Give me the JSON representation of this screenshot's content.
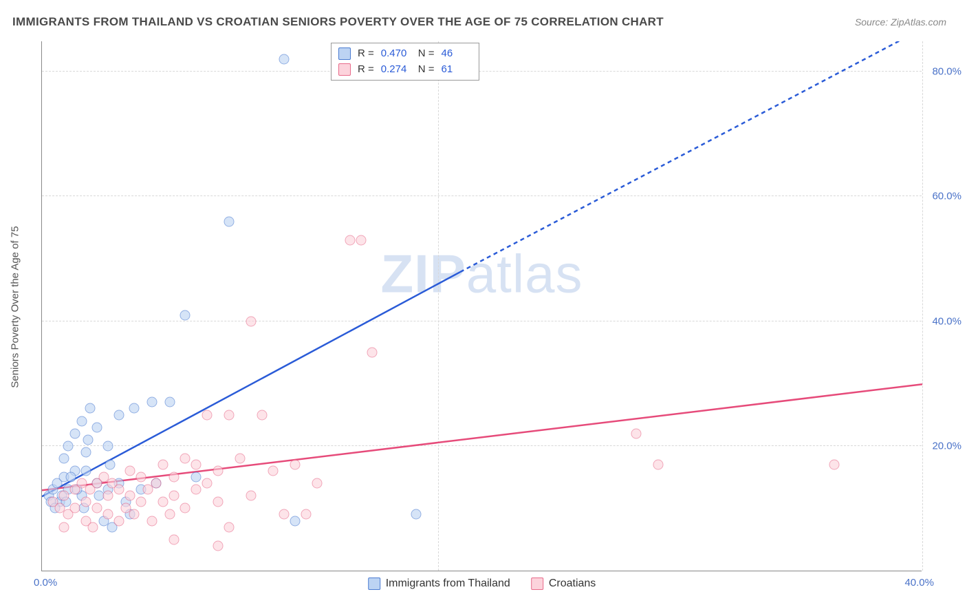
{
  "title": "IMMIGRANTS FROM THAILAND VS CROATIAN SENIORS POVERTY OVER THE AGE OF 75 CORRELATION CHART",
  "source": "Source: ZipAtlas.com",
  "ylabel": "Seniors Poverty Over the Age of 75",
  "watermark_a": "ZIP",
  "watermark_b": "atlas",
  "chart": {
    "type": "scatter",
    "xlim": [
      0,
      40
    ],
    "ylim": [
      0,
      85
    ],
    "ytick_labels": [
      "20.0%",
      "40.0%",
      "60.0%",
      "80.0%"
    ],
    "ytick_vals": [
      20,
      40,
      60,
      80
    ],
    "xtick_origin": "0.0%",
    "xtick_max": "40.0%",
    "xgrid_vals": [
      18,
      40
    ],
    "background_color": "#ffffff",
    "grid_color": "#d8d8d8",
    "axis_color": "#888888",
    "marker_radius": 7.5,
    "marker_opacity": 0.6
  },
  "series": [
    {
      "name": "Immigrants from Thailand",
      "point_fill": "#bcd3f3",
      "point_stroke": "#4a7bd1",
      "line_color": "#2a5bd7",
      "line_width": 2.5,
      "dash_extrapolate": "6,5",
      "R": "0.470",
      "N": "46",
      "regression": {
        "x1": 0,
        "y1": 12,
        "x2": 19,
        "y2": 48,
        "x3": 40,
        "y3": 87
      },
      "points": [
        [
          0.3,
          12
        ],
        [
          0.5,
          13
        ],
        [
          0.7,
          14
        ],
        [
          0.8,
          11
        ],
        [
          1.0,
          15
        ],
        [
          1.0,
          18
        ],
        [
          1.2,
          20
        ],
        [
          1.2,
          13
        ],
        [
          1.5,
          22
        ],
        [
          1.5,
          16
        ],
        [
          1.8,
          24
        ],
        [
          1.8,
          12
        ],
        [
          2.0,
          16
        ],
        [
          2.0,
          19
        ],
        [
          2.2,
          26
        ],
        [
          2.5,
          23
        ],
        [
          2.5,
          14
        ],
        [
          2.8,
          8
        ],
        [
          3.0,
          13
        ],
        [
          3.0,
          20
        ],
        [
          3.2,
          7
        ],
        [
          3.5,
          14
        ],
        [
          3.5,
          25
        ],
        [
          3.8,
          11
        ],
        [
          4.0,
          9
        ],
        [
          4.2,
          26
        ],
        [
          4.5,
          13
        ],
        [
          5.0,
          27
        ],
        [
          5.2,
          14
        ],
        [
          5.8,
          27
        ],
        [
          6.5,
          41
        ],
        [
          7.0,
          15
        ],
        [
          8.5,
          56
        ],
        [
          11.0,
          82
        ],
        [
          11.5,
          8
        ],
        [
          17.0,
          9
        ],
        [
          0.4,
          11
        ],
        [
          0.6,
          10
        ],
        [
          0.9,
          12
        ],
        [
          1.1,
          11
        ],
        [
          1.3,
          15
        ],
        [
          1.6,
          13
        ],
        [
          1.9,
          10
        ],
        [
          2.1,
          21
        ],
        [
          2.6,
          12
        ],
        [
          3.1,
          17
        ]
      ]
    },
    {
      "name": "Croatians",
      "point_fill": "#fcd3dc",
      "point_stroke": "#e86a8a",
      "line_color": "#e64b7a",
      "line_width": 2.5,
      "R": "0.274",
      "N": "61",
      "regression": {
        "x1": 0,
        "y1": 13,
        "x2": 40,
        "y2": 30
      },
      "points": [
        [
          0.5,
          11
        ],
        [
          0.8,
          10
        ],
        [
          1.0,
          12
        ],
        [
          1.2,
          9
        ],
        [
          1.5,
          13
        ],
        [
          1.5,
          10
        ],
        [
          1.8,
          14
        ],
        [
          2.0,
          11
        ],
        [
          2.0,
          8
        ],
        [
          2.2,
          13
        ],
        [
          2.5,
          14
        ],
        [
          2.5,
          10
        ],
        [
          2.8,
          15
        ],
        [
          3.0,
          12
        ],
        [
          3.0,
          9
        ],
        [
          3.2,
          14
        ],
        [
          3.5,
          13
        ],
        [
          3.5,
          8
        ],
        [
          3.8,
          10
        ],
        [
          4.0,
          16
        ],
        [
          4.0,
          12
        ],
        [
          4.2,
          9
        ],
        [
          4.5,
          15
        ],
        [
          4.5,
          11
        ],
        [
          4.8,
          13
        ],
        [
          5.0,
          8
        ],
        [
          5.2,
          14
        ],
        [
          5.5,
          17
        ],
        [
          5.5,
          11
        ],
        [
          5.8,
          9
        ],
        [
          6.0,
          15
        ],
        [
          6.0,
          12
        ],
        [
          6.5,
          18
        ],
        [
          6.5,
          10
        ],
        [
          7.0,
          17
        ],
        [
          7.0,
          13
        ],
        [
          7.5,
          25
        ],
        [
          7.5,
          14
        ],
        [
          8.0,
          16
        ],
        [
          8.0,
          11
        ],
        [
          8.5,
          7
        ],
        [
          8.5,
          25
        ],
        [
          9.0,
          18
        ],
        [
          9.5,
          12
        ],
        [
          9.5,
          40
        ],
        [
          10.0,
          25
        ],
        [
          10.5,
          16
        ],
        [
          11.0,
          9
        ],
        [
          11.5,
          17
        ],
        [
          12.0,
          9
        ],
        [
          12.5,
          14
        ],
        [
          14.0,
          53
        ],
        [
          14.5,
          53
        ],
        [
          15.0,
          35
        ],
        [
          27.0,
          22
        ],
        [
          28.0,
          17
        ],
        [
          36.0,
          17
        ],
        [
          1.0,
          7
        ],
        [
          2.3,
          7
        ],
        [
          6.0,
          5
        ],
        [
          8.0,
          4
        ]
      ]
    }
  ],
  "legend": {
    "top_rows": [
      {
        "series_idx": 0,
        "R_label": "R =",
        "N_label": "N ="
      },
      {
        "series_idx": 1,
        "R_label": "R =",
        "N_label": "N ="
      }
    ]
  }
}
